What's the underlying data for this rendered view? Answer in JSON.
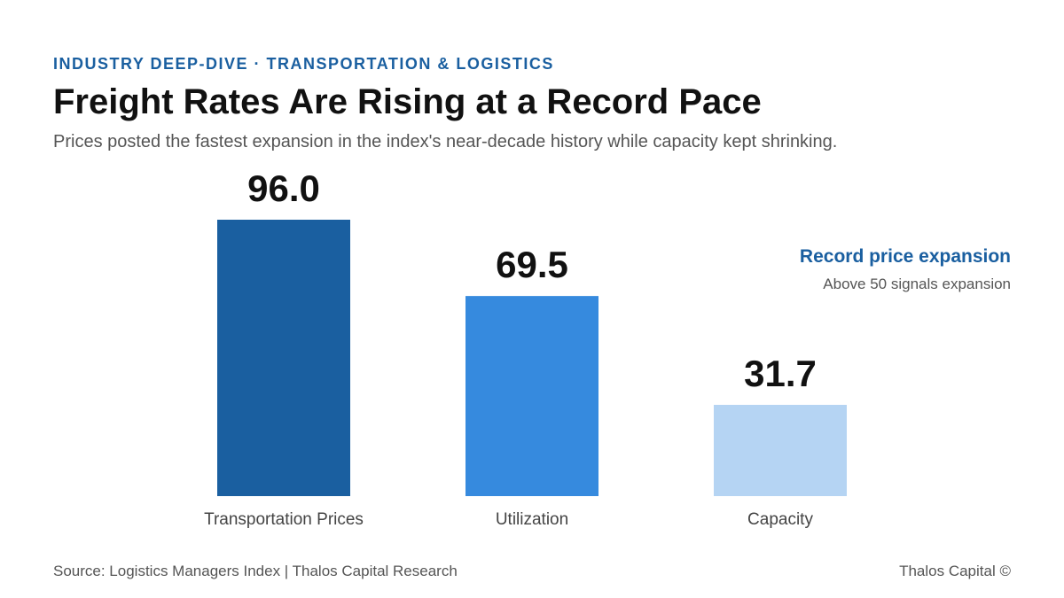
{
  "eyebrow": "INDUSTRY DEEP-DIVE · TRANSPORTATION & LOGISTICS",
  "chart_data": {
    "type": "bar",
    "title": "Freight Rates Are Rising at a Record Pace",
    "subtitle": "Prices posted the fastest expansion in the index's near-decade history while capacity kept shrinking.",
    "categories": [
      "Transportation Prices",
      "Utilization",
      "Capacity"
    ],
    "values": [
      96.0,
      69.5,
      31.7
    ],
    "value_labels": [
      "96.0",
      "69.5",
      "31.7"
    ],
    "colors": [
      "#1a5fa0",
      "#368ade",
      "#b5d4f3"
    ],
    "annotation": {
      "title": "Record price expansion",
      "text": "Above 50 signals expansion"
    }
  },
  "footer": {
    "source": "Source: Logistics Managers Index | Thalos Capital Research",
    "brand": "Thalos Capital ©"
  }
}
